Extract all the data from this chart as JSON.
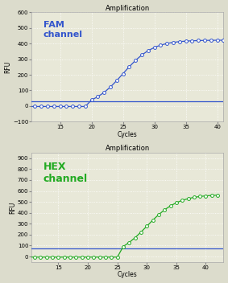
{
  "title": "Amplification",
  "fam_label": "FAM\nchannel",
  "fam_color": "#3355cc",
  "fam_threshold": 30,
  "fam_ylim": [
    -100,
    600
  ],
  "fam_yticks": [
    -100,
    0,
    100,
    200,
    300,
    400,
    500,
    600
  ],
  "fam_xlabel": "Cycles",
  "fam_ylabel": "RFU",
  "fam_xlim": [
    10.5,
    41
  ],
  "fam_xticks": [
    15,
    20,
    25,
    30,
    35,
    40
  ],
  "hex_label": "HEX\nchannel",
  "hex_color": "#22aa22",
  "hex_threshold": 75,
  "hex_ylim": [
    -50,
    950
  ],
  "hex_yticks": [
    0,
    100,
    200,
    300,
    400,
    500,
    600,
    700,
    800,
    900
  ],
  "hex_xlabel": "Cycles",
  "hex_ylabel": "RFU",
  "hex_xlim": [
    10.5,
    43
  ],
  "hex_xticks": [
    15,
    20,
    25,
    30,
    35,
    40
  ],
  "bg_color": "#e8e8d8",
  "grid_color": "#ffffff",
  "title_fontsize": 6,
  "fam_label_fontsize": 8,
  "hex_label_fontsize": 9,
  "axis_fontsize": 5.5,
  "tick_fontsize": 5
}
